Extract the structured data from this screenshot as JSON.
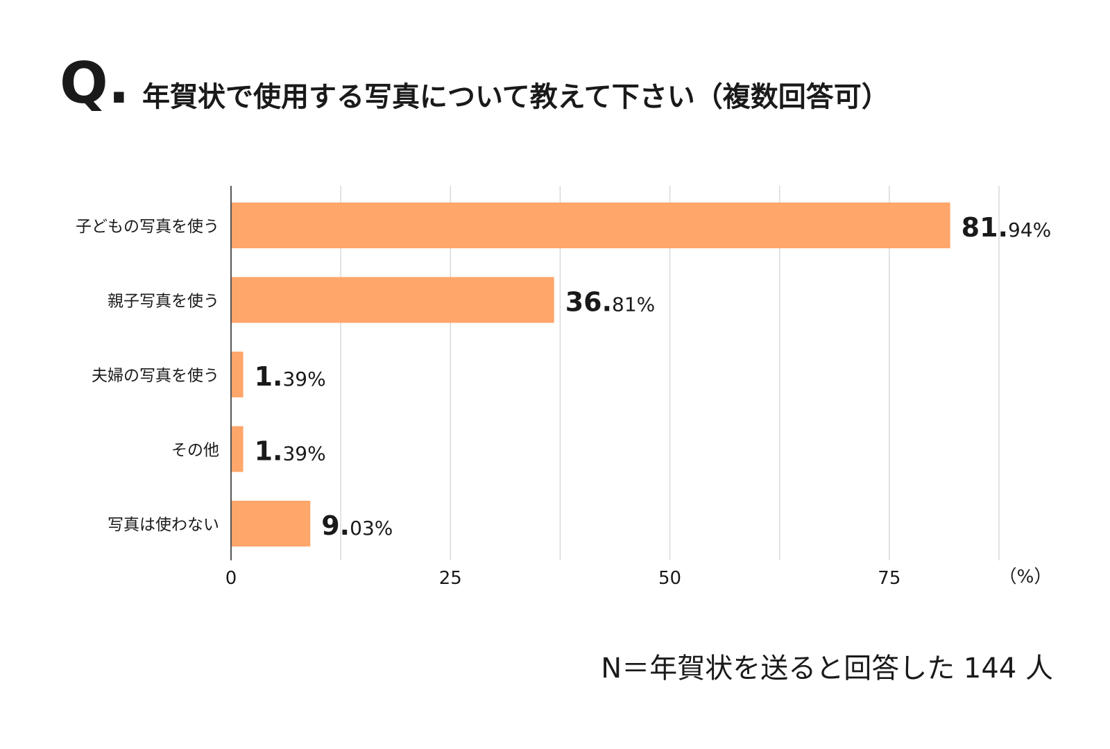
{
  "header": {
    "q_mark": "Q.",
    "title": "年賀状で使用する写真について教えて下さい（複数回答可）"
  },
  "chart_data": {
    "type": "bar",
    "orientation": "horizontal",
    "categories": [
      "子どもの写真を使う",
      "親子写真を使う",
      "夫婦の写真を使う",
      "その他",
      "写真は使わない"
    ],
    "values": [
      81.94,
      36.81,
      1.39,
      1.39,
      9.03
    ],
    "value_labels": [
      {
        "major": "81.",
        "minor": "94%"
      },
      {
        "major": "36.",
        "minor": "81%"
      },
      {
        "major": "1.",
        "minor": "39%"
      },
      {
        "major": "1.",
        "minor": "39%"
      },
      {
        "major": "9.",
        "minor": "03%"
      }
    ],
    "xlim": [
      0,
      87.5
    ],
    "x_ticks": [
      0,
      25,
      50,
      75
    ],
    "x_tick_labels": [
      "0",
      "25",
      "50",
      "75"
    ],
    "gridlines": [
      0,
      12.5,
      25,
      37.5,
      50,
      62.5,
      75,
      87.5
    ],
    "x_unit_label": "（%）",
    "grid": true,
    "bar_color": "#FFA66A",
    "grid_color": "#D9D9D9",
    "axis_color": "#555555"
  },
  "footer": {
    "note": "N＝年賀状を送ると回答した 144 人"
  }
}
